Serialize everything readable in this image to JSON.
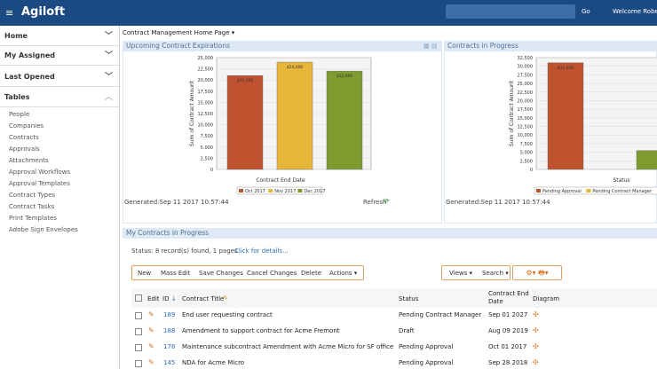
{
  "header": {
    "logo": "Agiloft",
    "go": "Go",
    "welcome": "Welcome Robert"
  },
  "sidebar": {
    "sections": [
      "Home",
      "My Assigned",
      "Last Opened",
      "Tables"
    ],
    "tables": [
      "People",
      "Companies",
      "Contracts",
      "Approvals",
      "Attachments",
      "Approval Workflows",
      "Approval Templates",
      "Contract Types",
      "Contract Tasks",
      "Print Templates",
      "Adobe Sign Envelopes"
    ]
  },
  "page_title": "Contract Management Home Page",
  "panels": [
    {
      "title": "Upcoming Contract Expirations",
      "generated": "Generated:Sep 11 2017 10:57:44",
      "refresh": "Refresh"
    },
    {
      "title": "Contracts in Progress",
      "generated": "Generated:Sep 11 2017 10:57:44"
    }
  ],
  "chart_data": [
    {
      "type": "bar",
      "ylabel": "Sum of Contract Amount",
      "xlabel": "Contract End Date",
      "categories": [
        "Oct 2017",
        "Nov 2017",
        "Dec 2017"
      ],
      "values": [
        21000,
        24000,
        22000
      ],
      "value_labels": [
        "$21,000",
        "$24,000",
        "$22,000"
      ],
      "colors": [
        "#c0532f",
        "#e6b63b",
        "#7f9a2f"
      ],
      "ylim": [
        0,
        25000
      ],
      "yticks": [
        0,
        {
          "value": 2500,
          "label": "2,500"
        },
        {
          "value": 5000,
          "label": "5,000"
        },
        {
          "value": 7500,
          "label": "7,500"
        },
        {
          "value": 10000,
          "label": "10,000"
        },
        {
          "value": 12500,
          "label": "12,500"
        },
        {
          "value": 15000,
          "label": "15,000"
        },
        {
          "value": 17500,
          "label": "17,500"
        },
        {
          "value": 20000,
          "label": "20,000"
        },
        {
          "value": 22500,
          "label": "22,500"
        },
        {
          "value": 25000,
          "label": "25,000"
        }
      ],
      "grid": true
    },
    {
      "type": "bar",
      "ylabel": "Sum of Contract Amount",
      "xlabel": "Status",
      "categories": [
        "Pending Approval",
        "Pending Contract Manager",
        null
      ],
      "values": [
        31000,
        null,
        5500
      ],
      "value_labels": [
        "$31,000",
        null,
        null
      ],
      "colors": [
        "#c0532f",
        "#e6b63b",
        "#7f9a2f"
      ],
      "ylim": [
        0,
        32500
      ],
      "yticks": [
        0,
        {
          "value": 2500,
          "label": "2,500"
        },
        {
          "value": 5000,
          "label": "5,000"
        },
        {
          "value": 7500,
          "label": "7,500"
        },
        {
          "value": 10000,
          "label": "10,000"
        },
        {
          "value": 12500,
          "label": "12,500"
        },
        {
          "value": 15000,
          "label": "15,000"
        },
        {
          "value": 17500,
          "label": "17,500"
        },
        {
          "value": 20000,
          "label": "20,000"
        },
        {
          "value": 22500,
          "label": "22,500"
        },
        {
          "value": 25000,
          "label": "25,000"
        },
        {
          "value": 27500,
          "label": "27,500"
        },
        {
          "value": 30000,
          "label": "30,000"
        },
        {
          "value": 32500,
          "label": "32,500"
        }
      ],
      "grid": true
    }
  ],
  "contracts": {
    "title": "My Contracts in Progress",
    "status": "Status: 8 record(s) found, 1 pages",
    "details": "Click for details...",
    "buttons": [
      "New",
      "Mass Edit",
      "Save Changes",
      "Cancel Changes",
      "Delete",
      "Actions"
    ],
    "right_buttons": [
      "Views",
      "Search"
    ],
    "columns": [
      "Edit",
      "ID",
      "Contract Title",
      "Status",
      "Contract End Date",
      "Diagram"
    ],
    "rows": [
      [
        "189",
        "End user requesting contract",
        "Pending Contract Manager",
        "Sep 01 2027"
      ],
      [
        "188",
        "Amendment to support contract for Acme Fremont",
        "Draft",
        "Aug 09 2019"
      ],
      [
        "178",
        "Maintenance subcontract Amendment with Acme Micro for SF office",
        "Pending Approval",
        "Oct 01 2017"
      ],
      [
        "145",
        "NDA for Acme Micro",
        "Pending Approval",
        "Sep 28 2018"
      ]
    ]
  }
}
